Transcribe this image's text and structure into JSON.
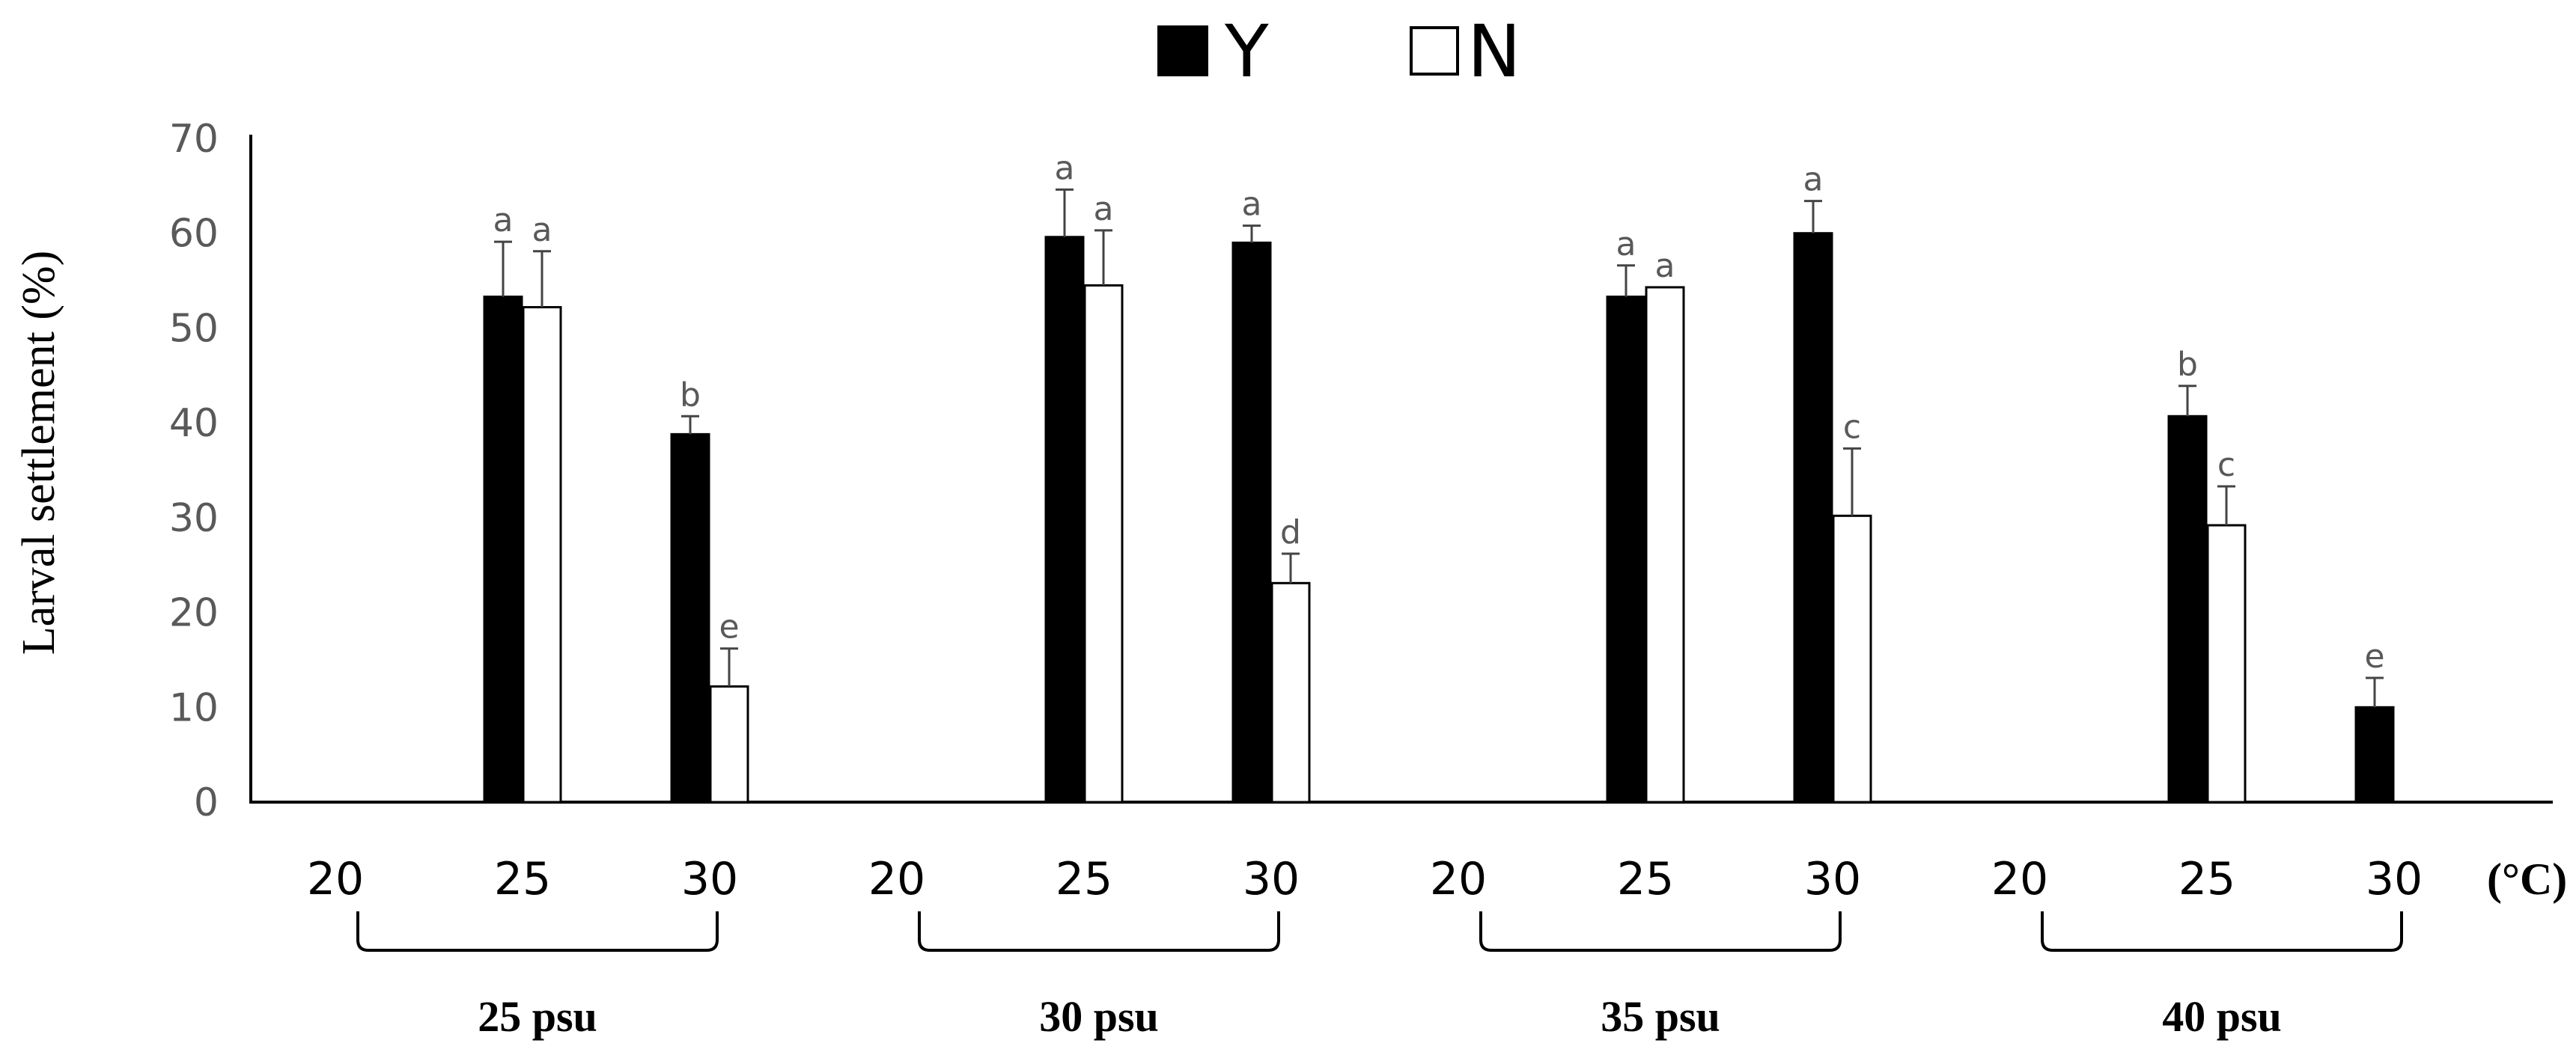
{
  "chart_data": {
    "type": "bar",
    "title": "",
    "ylabel": "Larval settlement (%)",
    "xlabel": "(°C)",
    "ylim": [
      0,
      70
    ],
    "yticks": [
      0,
      10,
      20,
      30,
      40,
      50,
      60,
      70
    ],
    "legend_position": "top-center",
    "series": [
      {
        "name": "Y",
        "color": "#000000"
      },
      {
        "name": "N",
        "color": "#ffffff"
      }
    ],
    "groups": [
      {
        "label": "25 psu",
        "categories": [
          {
            "label": "20",
            "Y": null,
            "N": null,
            "Y_err": null,
            "N_err": null,
            "Y_sig": "",
            "N_sig": ""
          },
          {
            "label": "25",
            "Y": 53.3,
            "N": 52.2,
            "Y_err": 5.8,
            "N_err": 5.9,
            "Y_sig": "a",
            "N_sig": "a"
          },
          {
            "label": "30",
            "Y": 38.8,
            "N": 12.2,
            "Y_err": 1.9,
            "N_err": 4.0,
            "Y_sig": "b",
            "N_sig": "e"
          }
        ]
      },
      {
        "label": "30 psu",
        "categories": [
          {
            "label": "20",
            "Y": null,
            "N": null,
            "Y_err": null,
            "N_err": null,
            "Y_sig": "",
            "N_sig": ""
          },
          {
            "label": "25",
            "Y": 59.6,
            "N": 54.5,
            "Y_err": 5.0,
            "N_err": 5.8,
            "Y_sig": "a",
            "N_sig": "a"
          },
          {
            "label": "30",
            "Y": 59.0,
            "N": 23.1,
            "Y_err": 1.8,
            "N_err": 3.1,
            "Y_sig": "a",
            "N_sig": "d"
          }
        ]
      },
      {
        "label": "35 psu",
        "categories": [
          {
            "label": "20",
            "Y": null,
            "N": null,
            "Y_err": null,
            "N_err": null,
            "Y_sig": "",
            "N_sig": ""
          },
          {
            "label": "25",
            "Y": 53.3,
            "N": 54.3,
            "Y_err": 3.3,
            "N_err": 0.0,
            "Y_sig": "a",
            "N_sig": "a"
          },
          {
            "label": "30",
            "Y": 60.0,
            "N": 30.2,
            "Y_err": 3.4,
            "N_err": 7.1,
            "Y_sig": "a",
            "N_sig": "c"
          }
        ]
      },
      {
        "label": "40 psu",
        "categories": [
          {
            "label": "20",
            "Y": null,
            "N": null,
            "Y_err": null,
            "N_err": null,
            "Y_sig": "",
            "N_sig": ""
          },
          {
            "label": "25",
            "Y": 40.7,
            "N": 29.2,
            "Y_err": 3.2,
            "N_err": 4.1,
            "Y_sig": "b",
            "N_sig": "c"
          },
          {
            "label": "30",
            "Y": 10.0,
            "N": 0,
            "Y_err": 3.1,
            "N_err": null,
            "Y_sig": "e",
            "N_sig": ""
          }
        ]
      }
    ]
  }
}
